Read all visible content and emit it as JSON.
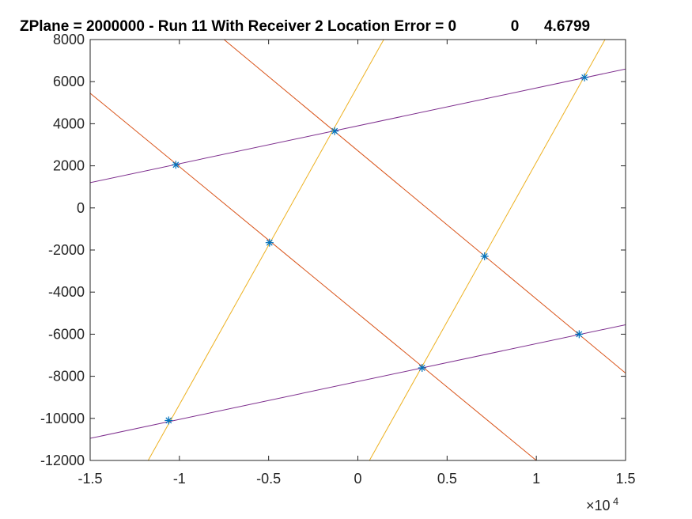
{
  "chart_data": {
    "type": "line",
    "title": "ZPlane = 2000000 - Run 11 With Receiver 2 Location Error = 0             0      4.6799",
    "xlabel": "",
    "ylabel": "",
    "xlim": [
      -15000,
      15000
    ],
    "ylim": [
      -12000,
      8000
    ],
    "x_tick_labels": [
      "-1.5",
      "-1",
      "-0.5",
      "0",
      "0.5",
      "1",
      "1.5"
    ],
    "x_tick_values": [
      -15000,
      -10000,
      -5000,
      0,
      5000,
      10000,
      15000
    ],
    "x_exponent_label": "×10",
    "x_exponent_power": "4",
    "y_tick_labels": [
      "8000",
      "6000",
      "4000",
      "2000",
      "0",
      "-2000",
      "-4000",
      "-6000",
      "-8000",
      "-10000",
      "-12000"
    ],
    "y_tick_values": [
      8000,
      6000,
      4000,
      2000,
      0,
      -2000,
      -4000,
      -6000,
      -8000,
      -10000,
      -12000
    ],
    "grid": false,
    "legend": "none",
    "series": [
      {
        "style": "line",
        "color": "#7E2F8E",
        "points": [
          [
            -15000,
            1200
          ],
          [
            15000,
            6600
          ]
        ]
      },
      {
        "style": "line",
        "color": "#7E2F8E",
        "points": [
          [
            -15000,
            -10950
          ],
          [
            15000,
            -5550
          ]
        ]
      },
      {
        "style": "line",
        "color": "#D95319",
        "points": [
          [
            -15000,
            5450
          ],
          [
            10000,
            -12000
          ]
        ]
      },
      {
        "style": "line",
        "color": "#D95319",
        "points": [
          [
            -7500,
            8000
          ],
          [
            15000,
            -7850
          ]
        ]
      },
      {
        "style": "line",
        "color": "#EDB120",
        "points": [
          [
            -11750,
            -12000
          ],
          [
            1450,
            8000
          ]
        ]
      },
      {
        "style": "line",
        "color": "#EDB120",
        "points": [
          [
            650,
            -12000
          ],
          [
            13850,
            8000
          ]
        ]
      },
      {
        "style": "markers",
        "marker": "asterisk",
        "color": "#0072BD",
        "points": [
          [
            -10200,
            2050
          ],
          [
            -1300,
            3650
          ],
          [
            12700,
            6200
          ],
          [
            -4950,
            -1650
          ],
          [
            7100,
            -2300
          ],
          [
            -10600,
            -10100
          ],
          [
            3600,
            -7600
          ],
          [
            12400,
            -6000
          ]
        ]
      }
    ]
  }
}
